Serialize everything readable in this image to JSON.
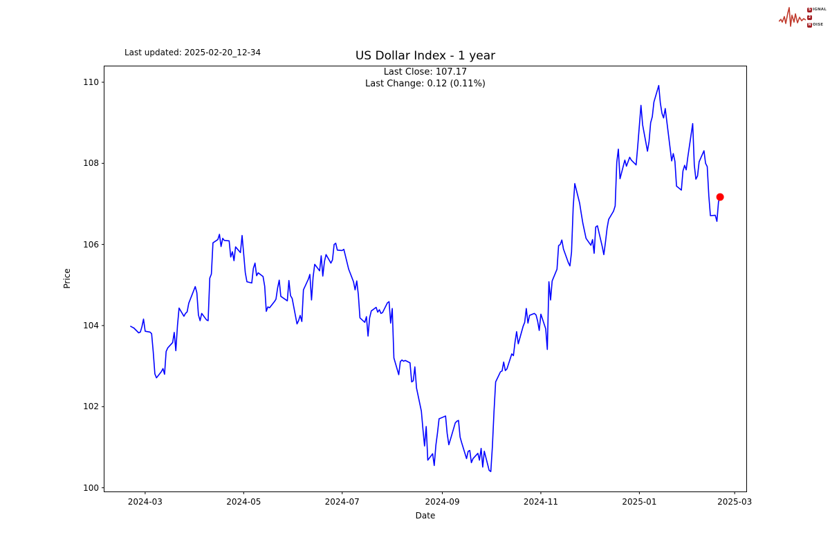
{
  "header": {
    "last_updated": "Last updated: 2025-02-20_12-34"
  },
  "logo": {
    "word1_initial": "S",
    "word1_rest": "IGNAL",
    "middle": "2",
    "word2_initial": "N",
    "word2_rest": "OISE",
    "waveform_color": "#c0392b"
  },
  "chart_data": {
    "type": "line",
    "title": "US Dollar Index - 1 year",
    "annotation_line1": "Last Close: 107.17",
    "annotation_line2": "Last Change: 0.12 (0.11%)",
    "xlabel": "Date",
    "ylabel": "Price",
    "last_close": 107.17,
    "last_change": 0.12,
    "last_change_pct": "0.11%",
    "line_color": "#0000ff",
    "marker_color": "#ff0000",
    "background": "#ffffff",
    "grid": false,
    "legend": "none",
    "ylim": [
      99.9,
      110.4
    ],
    "yticks": [
      100,
      102,
      104,
      106,
      108,
      110
    ],
    "xticks": [
      "2024-03-01",
      "2024-05-01",
      "2024-07-01",
      "2024-09-01",
      "2024-11-01",
      "2025-01-01",
      "2025-03-01"
    ],
    "xtick_labels": [
      "2024-03",
      "2024-05",
      "2024-07",
      "2024-09",
      "2024-11",
      "2025-01",
      "2025-03"
    ],
    "series": [
      {
        "name": "US Dollar Index",
        "points": [
          [
            "2024-02-21",
            103.98
          ],
          [
            "2024-02-22",
            103.96
          ],
          [
            "2024-02-23",
            103.94
          ],
          [
            "2024-02-26",
            103.82
          ],
          [
            "2024-02-27",
            103.84
          ],
          [
            "2024-02-28",
            103.97
          ],
          [
            "2024-02-29",
            104.16
          ],
          [
            "2024-03-01",
            103.86
          ],
          [
            "2024-03-04",
            103.84
          ],
          [
            "2024-03-05",
            103.8
          ],
          [
            "2024-03-06",
            103.36
          ],
          [
            "2024-03-07",
            102.81
          ],
          [
            "2024-03-08",
            102.71
          ],
          [
            "2024-03-11",
            102.86
          ],
          [
            "2024-03-12",
            102.94
          ],
          [
            "2024-03-13",
            102.8
          ],
          [
            "2024-03-14",
            103.36
          ],
          [
            "2024-03-15",
            103.45
          ],
          [
            "2024-03-18",
            103.58
          ],
          [
            "2024-03-19",
            103.83
          ],
          [
            "2024-03-20",
            103.38
          ],
          [
            "2024-03-21",
            104.0
          ],
          [
            "2024-03-22",
            104.43
          ],
          [
            "2024-03-25",
            104.23
          ],
          [
            "2024-03-26",
            104.3
          ],
          [
            "2024-03-27",
            104.34
          ],
          [
            "2024-03-28",
            104.55
          ],
          [
            "2024-04-01",
            104.96
          ],
          [
            "2024-04-02",
            104.81
          ],
          [
            "2024-04-03",
            104.26
          ],
          [
            "2024-04-04",
            104.12
          ],
          [
            "2024-04-05",
            104.3
          ],
          [
            "2024-04-08",
            104.14
          ],
          [
            "2024-04-09",
            104.12
          ],
          [
            "2024-04-10",
            105.17
          ],
          [
            "2024-04-11",
            105.27
          ],
          [
            "2024-04-12",
            106.04
          ],
          [
            "2024-04-15",
            106.12
          ],
          [
            "2024-04-16",
            106.25
          ],
          [
            "2024-04-17",
            105.95
          ],
          [
            "2024-04-18",
            106.15
          ],
          [
            "2024-04-19",
            106.1
          ],
          [
            "2024-04-22",
            106.09
          ],
          [
            "2024-04-23",
            105.69
          ],
          [
            "2024-04-24",
            105.82
          ],
          [
            "2024-04-25",
            105.6
          ],
          [
            "2024-04-26",
            105.94
          ],
          [
            "2024-04-29",
            105.8
          ],
          [
            "2024-04-30",
            106.22
          ],
          [
            "2024-05-01",
            105.77
          ],
          [
            "2024-05-02",
            105.31
          ],
          [
            "2024-05-03",
            105.08
          ],
          [
            "2024-05-06",
            105.05
          ],
          [
            "2024-05-07",
            105.41
          ],
          [
            "2024-05-08",
            105.54
          ],
          [
            "2024-05-09",
            105.23
          ],
          [
            "2024-05-10",
            105.3
          ],
          [
            "2024-05-13",
            105.21
          ],
          [
            "2024-05-14",
            104.97
          ],
          [
            "2024-05-15",
            104.35
          ],
          [
            "2024-05-16",
            104.46
          ],
          [
            "2024-05-17",
            104.44
          ],
          [
            "2024-05-20",
            104.59
          ],
          [
            "2024-05-21",
            104.65
          ],
          [
            "2024-05-22",
            104.92
          ],
          [
            "2024-05-23",
            105.12
          ],
          [
            "2024-05-24",
            104.72
          ],
          [
            "2024-05-28",
            104.61
          ],
          [
            "2024-05-29",
            105.11
          ],
          [
            "2024-05-30",
            104.74
          ],
          [
            "2024-05-31",
            104.67
          ],
          [
            "2024-06-03",
            104.04
          ],
          [
            "2024-06-04",
            104.12
          ],
          [
            "2024-06-05",
            104.25
          ],
          [
            "2024-06-06",
            104.1
          ],
          [
            "2024-06-07",
            104.88
          ],
          [
            "2024-06-10",
            105.14
          ],
          [
            "2024-06-11",
            105.26
          ],
          [
            "2024-06-12",
            104.63
          ],
          [
            "2024-06-13",
            105.2
          ],
          [
            "2024-06-14",
            105.51
          ],
          [
            "2024-06-17",
            105.35
          ],
          [
            "2024-06-18",
            105.72
          ],
          [
            "2024-06-19",
            105.22
          ],
          [
            "2024-06-20",
            105.58
          ],
          [
            "2024-06-21",
            105.75
          ],
          [
            "2024-06-24",
            105.54
          ],
          [
            "2024-06-25",
            105.62
          ],
          [
            "2024-06-26",
            106.0
          ],
          [
            "2024-06-27",
            106.03
          ],
          [
            "2024-06-28",
            105.86
          ],
          [
            "2024-07-01",
            105.85
          ],
          [
            "2024-07-02",
            105.88
          ],
          [
            "2024-07-03",
            105.72
          ],
          [
            "2024-07-05",
            105.39
          ],
          [
            "2024-07-08",
            105.08
          ],
          [
            "2024-07-09",
            104.88
          ],
          [
            "2024-07-10",
            105.1
          ],
          [
            "2024-07-11",
            104.76
          ],
          [
            "2024-07-12",
            104.19
          ],
          [
            "2024-07-15",
            104.08
          ],
          [
            "2024-07-16",
            104.22
          ],
          [
            "2024-07-17",
            103.74
          ],
          [
            "2024-07-18",
            104.19
          ],
          [
            "2024-07-19",
            104.36
          ],
          [
            "2024-07-22",
            104.45
          ],
          [
            "2024-07-23",
            104.33
          ],
          [
            "2024-07-24",
            104.39
          ],
          [
            "2024-07-25",
            104.3
          ],
          [
            "2024-07-26",
            104.32
          ],
          [
            "2024-07-29",
            104.56
          ],
          [
            "2024-07-30",
            104.59
          ],
          [
            "2024-07-31",
            104.06
          ],
          [
            "2024-08-01",
            104.42
          ],
          [
            "2024-08-02",
            103.2
          ],
          [
            "2024-08-05",
            102.79
          ],
          [
            "2024-08-06",
            103.11
          ],
          [
            "2024-08-07",
            103.15
          ],
          [
            "2024-08-08",
            103.12
          ],
          [
            "2024-08-09",
            103.14
          ],
          [
            "2024-08-12",
            103.08
          ],
          [
            "2024-08-13",
            102.61
          ],
          [
            "2024-08-14",
            102.64
          ],
          [
            "2024-08-15",
            102.98
          ],
          [
            "2024-08-16",
            102.46
          ],
          [
            "2024-08-19",
            101.89
          ],
          [
            "2024-08-20",
            101.44
          ],
          [
            "2024-08-21",
            101.03
          ],
          [
            "2024-08-22",
            101.51
          ],
          [
            "2024-08-23",
            100.68
          ],
          [
            "2024-08-26",
            100.84
          ],
          [
            "2024-08-27",
            100.55
          ],
          [
            "2024-08-28",
            101.05
          ],
          [
            "2024-08-29",
            101.35
          ],
          [
            "2024-08-30",
            101.7
          ],
          [
            "2024-09-03",
            101.77
          ],
          [
            "2024-09-04",
            101.34
          ],
          [
            "2024-09-05",
            101.06
          ],
          [
            "2024-09-06",
            101.19
          ],
          [
            "2024-09-09",
            101.6
          ],
          [
            "2024-09-10",
            101.64
          ],
          [
            "2024-09-11",
            101.66
          ],
          [
            "2024-09-12",
            101.25
          ],
          [
            "2024-09-13",
            101.11
          ],
          [
            "2024-09-16",
            100.72
          ],
          [
            "2024-09-17",
            100.9
          ],
          [
            "2024-09-18",
            100.92
          ],
          [
            "2024-09-19",
            100.62
          ],
          [
            "2024-09-20",
            100.72
          ],
          [
            "2024-09-23",
            100.85
          ],
          [
            "2024-09-24",
            100.68
          ],
          [
            "2024-09-25",
            100.97
          ],
          [
            "2024-09-26",
            100.51
          ],
          [
            "2024-09-27",
            100.9
          ],
          [
            "2024-09-30",
            100.43
          ],
          [
            "2024-10-01",
            100.4
          ],
          [
            "2024-10-02",
            101.02
          ],
          [
            "2024-10-03",
            101.87
          ],
          [
            "2024-10-04",
            102.61
          ],
          [
            "2024-10-07",
            102.86
          ],
          [
            "2024-10-08",
            102.88
          ],
          [
            "2024-10-09",
            103.1
          ],
          [
            "2024-10-10",
            102.89
          ],
          [
            "2024-10-11",
            102.93
          ],
          [
            "2024-10-14",
            103.3
          ],
          [
            "2024-10-15",
            103.26
          ],
          [
            "2024-10-16",
            103.59
          ],
          [
            "2024-10-17",
            103.85
          ],
          [
            "2024-10-18",
            103.55
          ],
          [
            "2024-10-21",
            103.98
          ],
          [
            "2024-10-22",
            104.08
          ],
          [
            "2024-10-23",
            104.42
          ],
          [
            "2024-10-24",
            104.06
          ],
          [
            "2024-10-25",
            104.25
          ],
          [
            "2024-10-28",
            104.3
          ],
          [
            "2024-10-29",
            104.26
          ],
          [
            "2024-10-30",
            104.11
          ],
          [
            "2024-10-31",
            103.88
          ],
          [
            "2024-11-01",
            104.28
          ],
          [
            "2024-11-04",
            103.92
          ],
          [
            "2024-11-05",
            103.41
          ],
          [
            "2024-11-06",
            105.08
          ],
          [
            "2024-11-07",
            104.63
          ],
          [
            "2024-11-08",
            105.1
          ],
          [
            "2024-11-11",
            105.39
          ],
          [
            "2024-11-12",
            105.97
          ],
          [
            "2024-11-13",
            106.0
          ],
          [
            "2024-11-14",
            106.11
          ],
          [
            "2024-11-15",
            105.89
          ],
          [
            "2024-11-18",
            105.55
          ],
          [
            "2024-11-19",
            105.47
          ],
          [
            "2024-11-20",
            105.81
          ],
          [
            "2024-11-21",
            106.91
          ],
          [
            "2024-11-22",
            107.5
          ],
          [
            "2024-11-25",
            107.02
          ],
          [
            "2024-11-26",
            106.77
          ],
          [
            "2024-11-27",
            106.52
          ],
          [
            "2024-11-29",
            106.15
          ],
          [
            "2024-12-02",
            105.98
          ],
          [
            "2024-12-03",
            106.12
          ],
          [
            "2024-12-04",
            105.78
          ],
          [
            "2024-12-05",
            106.43
          ],
          [
            "2024-12-06",
            106.46
          ],
          [
            "2024-12-09",
            105.95
          ],
          [
            "2024-12-10",
            105.75
          ],
          [
            "2024-12-11",
            106.06
          ],
          [
            "2024-12-12",
            106.4
          ],
          [
            "2024-12-13",
            106.62
          ],
          [
            "2024-12-16",
            106.82
          ],
          [
            "2024-12-17",
            106.95
          ],
          [
            "2024-12-18",
            108.02
          ],
          [
            "2024-12-19",
            108.35
          ],
          [
            "2024-12-20",
            107.62
          ],
          [
            "2024-12-23",
            108.08
          ],
          [
            "2024-12-24",
            107.93
          ],
          [
            "2024-12-26",
            108.15
          ],
          [
            "2024-12-27",
            108.08
          ],
          [
            "2024-12-30",
            107.96
          ],
          [
            "2024-12-31",
            108.44
          ],
          [
            "2025-01-02",
            109.43
          ],
          [
            "2025-01-03",
            108.95
          ],
          [
            "2025-01-06",
            108.3
          ],
          [
            "2025-01-07",
            108.54
          ],
          [
            "2025-01-08",
            109.0
          ],
          [
            "2025-01-09",
            109.15
          ],
          [
            "2025-01-10",
            109.51
          ],
          [
            "2025-01-13",
            109.92
          ],
          [
            "2025-01-14",
            109.49
          ],
          [
            "2025-01-15",
            109.23
          ],
          [
            "2025-01-16",
            109.12
          ],
          [
            "2025-01-17",
            109.35
          ],
          [
            "2025-01-21",
            108.06
          ],
          [
            "2025-01-22",
            108.24
          ],
          [
            "2025-01-23",
            108.05
          ],
          [
            "2025-01-24",
            107.44
          ],
          [
            "2025-01-27",
            107.34
          ],
          [
            "2025-01-28",
            107.81
          ],
          [
            "2025-01-29",
            107.95
          ],
          [
            "2025-01-30",
            107.84
          ],
          [
            "2025-01-31",
            108.15
          ],
          [
            "2025-02-03",
            108.98
          ],
          [
            "2025-02-04",
            107.96
          ],
          [
            "2025-02-05",
            107.61
          ],
          [
            "2025-02-06",
            107.69
          ],
          [
            "2025-02-07",
            108.04
          ],
          [
            "2025-02-10",
            108.31
          ],
          [
            "2025-02-11",
            108.0
          ],
          [
            "2025-02-12",
            107.92
          ],
          [
            "2025-02-13",
            107.2
          ],
          [
            "2025-02-14",
            106.71
          ],
          [
            "2025-02-17",
            106.72
          ],
          [
            "2025-02-18",
            106.57
          ],
          [
            "2025-02-19",
            107.05
          ],
          [
            "2025-02-20",
            107.17
          ]
        ]
      }
    ]
  }
}
